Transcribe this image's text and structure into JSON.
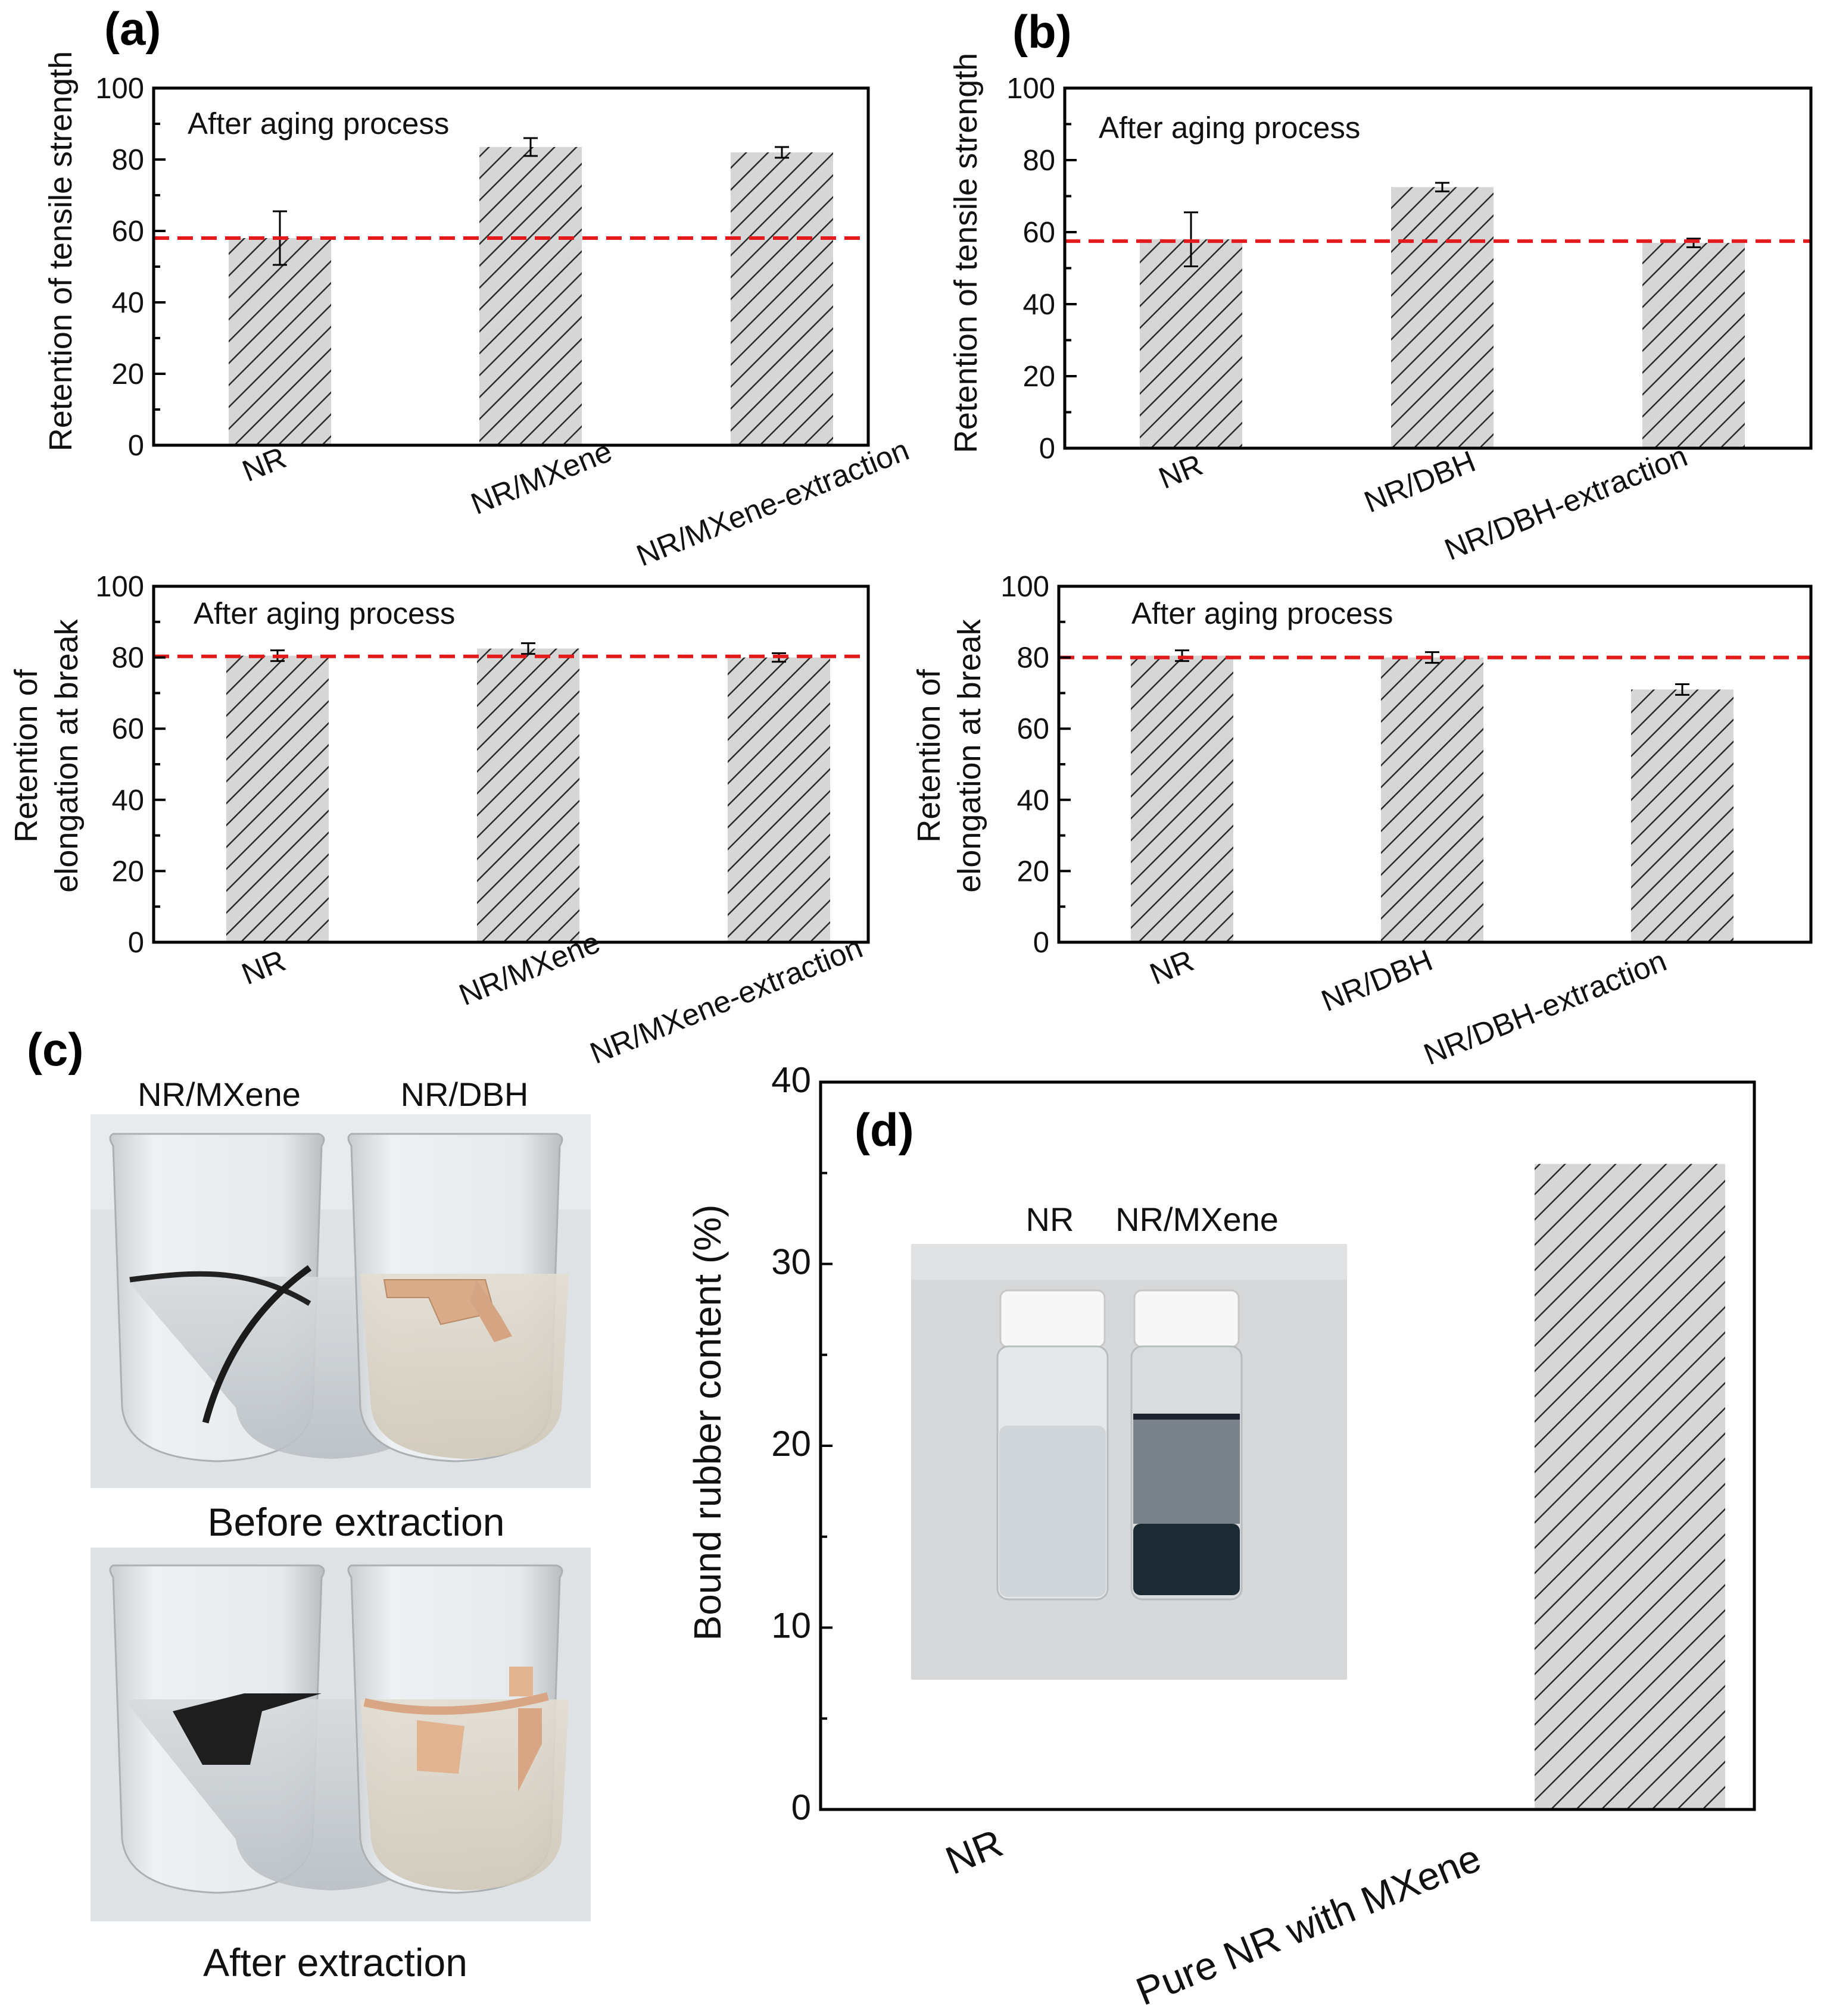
{
  "chart_data": [
    {
      "id": "a-top",
      "panel_label": "(a)",
      "type": "bar",
      "title": "",
      "xlabel": "",
      "ylabel": "Retention of tensile strength",
      "annotation": "After aging process",
      "categories": [
        "NR",
        "NR/MXene",
        "NR/MXene-extraction"
      ],
      "values": [
        58,
        83.5,
        82
      ],
      "errors": [
        7.5,
        2.5,
        1.5
      ],
      "reference_line": 58,
      "ylim": [
        0,
        100
      ],
      "yticks": [
        "0",
        "20",
        "40",
        "60",
        "80",
        "100"
      ],
      "grid": false
    },
    {
      "id": "b-top",
      "panel_label": "(b)",
      "type": "bar",
      "title": "",
      "xlabel": "",
      "ylabel": "Retention of tensile strength",
      "annotation": "After aging process",
      "categories": [
        "NR",
        "NR/DBH",
        "NR/DBH-extraction"
      ],
      "values": [
        58,
        72.5,
        57
      ],
      "errors": [
        7.5,
        1.2,
        1.2
      ],
      "reference_line": 57.5,
      "ylim": [
        0,
        100
      ],
      "yticks": [
        "0",
        "20",
        "40",
        "60",
        "80",
        "100"
      ],
      "grid": false
    },
    {
      "id": "a-bottom",
      "type": "bar",
      "title": "",
      "xlabel": "",
      "ylabel_lines": [
        "Retention of",
        "elongation at break"
      ],
      "annotation": "After aging process",
      "categories": [
        "NR",
        "NR/MXene",
        "NR/MXene-extraction"
      ],
      "values": [
        80.5,
        82.5,
        80
      ],
      "errors": [
        1.5,
        1.5,
        1.2
      ],
      "reference_line": 80.3,
      "ylim": [
        0,
        100
      ],
      "yticks": [
        "0",
        "20",
        "40",
        "60",
        "80",
        "100"
      ],
      "grid": false
    },
    {
      "id": "b-bottom",
      "type": "bar",
      "title": "",
      "xlabel": "",
      "ylabel_lines": [
        "Retention of",
        "elongation at break"
      ],
      "annotation": "After aging process",
      "categories": [
        "NR",
        "NR/DBH",
        "NR/DBH-extraction"
      ],
      "values": [
        80.5,
        80,
        71
      ],
      "errors": [
        1.5,
        1.5,
        1.5
      ],
      "reference_line": 80,
      "ylim": [
        0,
        100
      ],
      "yticks": [
        "0",
        "20",
        "40",
        "60",
        "80",
        "100"
      ],
      "grid": false
    },
    {
      "id": "d",
      "panel_label": "(d)",
      "type": "bar",
      "title": "",
      "xlabel": "",
      "ylabel": "Bound rubber content (%)",
      "categories": [
        "NR",
        "Pure NR with MXene"
      ],
      "values": [
        0,
        35.5
      ],
      "ylim": [
        0,
        40
      ],
      "yticks": [
        "0",
        "10",
        "20",
        "30",
        "40"
      ],
      "grid": false
    }
  ],
  "panel_c": {
    "label": "(c)",
    "beaker_labels": [
      "NR/MXene",
      "NR/DBH"
    ],
    "captions": [
      "Before extraction",
      "After extraction"
    ]
  },
  "panel_d_inset": {
    "vial_labels": [
      "NR",
      "NR/MXene"
    ]
  },
  "colors": {
    "bar_fill": "#d6d6d6",
    "hatch": "#2a2a2a",
    "reference_line": "#e31a1c",
    "axis": "#000000"
  }
}
